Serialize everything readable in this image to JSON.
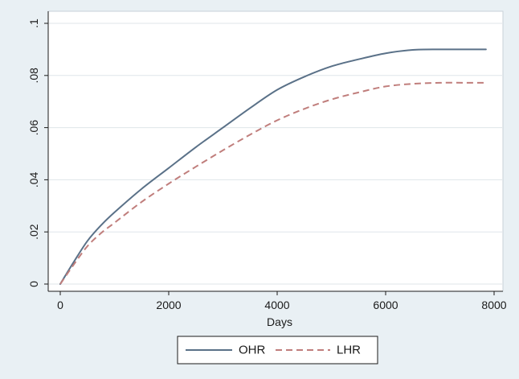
{
  "chart_data": {
    "type": "line",
    "title": "",
    "xlabel": "Days",
    "ylabel": "",
    "xlim": [
      0,
      8000
    ],
    "ylim": [
      0,
      0.1
    ],
    "xticks": [
      0,
      2000,
      4000,
      6000,
      8000
    ],
    "xtick_labels": [
      "0",
      "2000",
      "4000",
      "6000",
      "8000"
    ],
    "yticks": [
      0,
      0.02,
      0.04,
      0.06,
      0.08,
      0.1
    ],
    "ytick_labels": [
      "0",
      ".02",
      ".04",
      ".06",
      ".08",
      ".1"
    ],
    "grid": true,
    "legend_position": "bottom",
    "x": [
      0,
      250,
      500,
      750,
      1000,
      1500,
      2000,
      2500,
      3000,
      3500,
      4000,
      4500,
      5000,
      5500,
      6000,
      6500,
      7000,
      7500,
      7850
    ],
    "series": [
      {
        "name": "OHR",
        "color": "#5a7188",
        "style": "solid",
        "values": [
          0,
          0.0085,
          0.0165,
          0.0225,
          0.0275,
          0.0365,
          0.0445,
          0.0525,
          0.06,
          0.0675,
          0.0745,
          0.0795,
          0.0835,
          0.0862,
          0.0885,
          0.0898,
          0.09,
          0.09,
          0.09
        ]
      },
      {
        "name": "LHR",
        "color": "#c07e7c",
        "style": "dashed",
        "values": [
          0,
          0.0075,
          0.0145,
          0.0195,
          0.0235,
          0.0315,
          0.0385,
          0.045,
          0.0513,
          0.0573,
          0.0628,
          0.0672,
          0.0708,
          0.0735,
          0.0758,
          0.0768,
          0.0772,
          0.0772,
          0.0772
        ]
      }
    ]
  }
}
